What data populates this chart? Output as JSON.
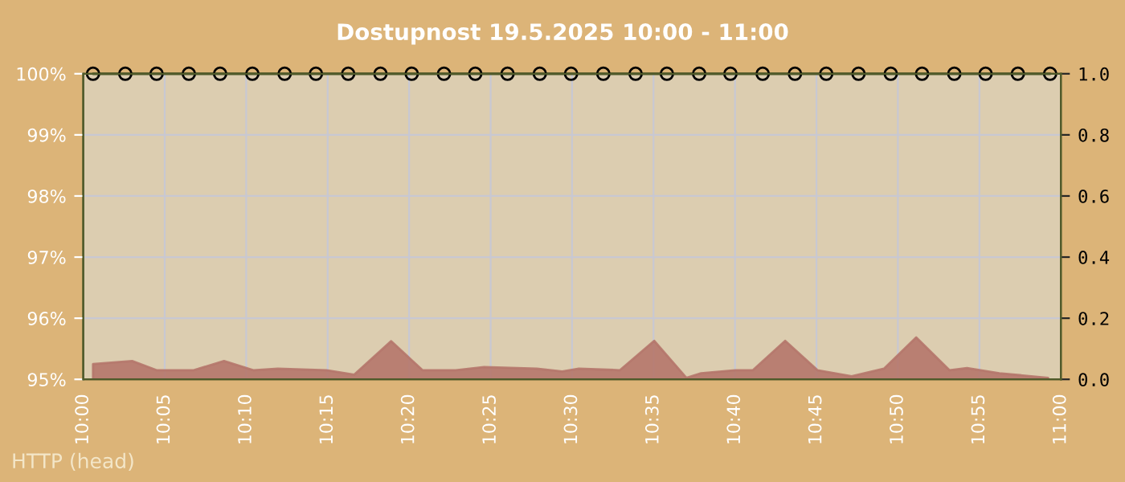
{
  "chart_data": {
    "type": "line",
    "title": "Dostupnost 19.5.2025 10:00 - 11:00",
    "annotations": [
      "HTTP (head)"
    ],
    "xlim": [
      10,
      11
    ],
    "xticks": [
      {
        "value": 10,
        "label": "10:00"
      },
      {
        "value": 10.0833,
        "label": "10:05"
      },
      {
        "value": 10.1667,
        "label": "10:10"
      },
      {
        "value": 10.25,
        "label": "10:15"
      },
      {
        "value": 10.3333,
        "label": "10:20"
      },
      {
        "value": 10.4167,
        "label": "10:25"
      },
      {
        "value": 10.5,
        "label": "10:30"
      },
      {
        "value": 10.5833,
        "label": "10:35"
      },
      {
        "value": 10.6667,
        "label": "10:40"
      },
      {
        "value": 10.75,
        "label": "10:45"
      },
      {
        "value": 10.8333,
        "label": "10:50"
      },
      {
        "value": 10.9167,
        "label": "10:55"
      },
      {
        "value": 11,
        "label": "11:00"
      }
    ],
    "ylim": [
      95,
      100
    ],
    "yticks": [
      {
        "value": 95,
        "label": "95%"
      },
      {
        "value": 96,
        "label": "96%"
      },
      {
        "value": 97,
        "label": "97%"
      },
      {
        "value": 98,
        "label": "98%"
      },
      {
        "value": 99,
        "label": "99%"
      },
      {
        "value": 100,
        "label": "100%"
      }
    ],
    "y2lim": [
      0,
      1
    ],
    "y2ticks": [
      {
        "value": 0,
        "label": "0.0"
      },
      {
        "value": 0.2,
        "label": "0.2"
      },
      {
        "value": 0.4,
        "label": "0.4"
      },
      {
        "value": 0.6,
        "label": "0.6"
      },
      {
        "value": 0.8,
        "label": "0.8"
      },
      {
        "value": 1,
        "label": "1.0"
      }
    ],
    "grid": true,
    "series": [
      {
        "type": "area",
        "axis": "y2",
        "color": "#b5776b",
        "x": [
          10.01,
          10.05,
          10.075,
          10.113,
          10.144,
          10.174,
          10.199,
          10.249,
          10.277,
          10.315,
          10.347,
          10.381,
          10.41,
          10.464,
          10.49,
          10.507,
          10.549,
          10.584,
          10.617,
          10.632,
          10.667,
          10.685,
          10.718,
          10.751,
          10.786,
          10.819,
          10.852,
          10.886,
          10.904,
          10.937,
          10.987
        ],
        "values": [
          0.05,
          0.06,
          0.03,
          0.03,
          0.06,
          0.03,
          0.035,
          0.03,
          0.015,
          0.125,
          0.03,
          0.03,
          0.04,
          0.035,
          0.026,
          0.035,
          0.03,
          0.126,
          0.005,
          0.02,
          0.03,
          0.03,
          0.126,
          0.03,
          0.01,
          0.035,
          0.137,
          0.03,
          0.037,
          0.02,
          0.005
        ]
      },
      {
        "marker": "circle",
        "color": "#4f5a2a",
        "x": [
          10.01,
          10.043,
          10.075,
          10.108,
          10.14,
          10.173,
          10.206,
          10.238,
          10.271,
          10.304,
          10.336,
          10.369,
          10.401,
          10.434,
          10.467,
          10.499,
          10.532,
          10.565,
          10.597,
          10.63,
          10.662,
          10.695,
          10.728,
          10.76,
          10.793,
          10.826,
          10.858,
          10.891,
          10.923,
          10.956,
          10.989
        ],
        "values": [
          100,
          100,
          100,
          100,
          100,
          100,
          100,
          100,
          100,
          100,
          100,
          100,
          100,
          100,
          100,
          100,
          100,
          100,
          100,
          100,
          100,
          100,
          100,
          100,
          100,
          100,
          100,
          100,
          100,
          100,
          100
        ]
      }
    ]
  }
}
